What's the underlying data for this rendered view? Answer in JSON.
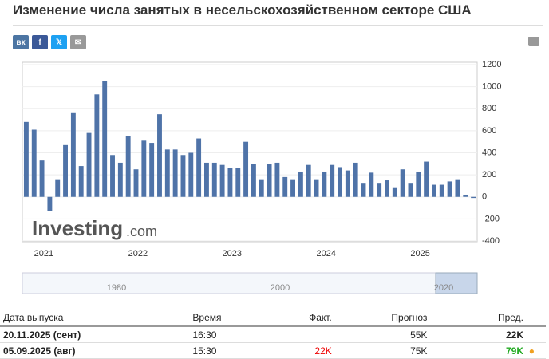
{
  "header": {
    "title": "Изменение числа занятых в несельскохозяйственном секторе США"
  },
  "share": [
    "вк",
    "f",
    "𝕏",
    "✉"
  ],
  "chart_data": {
    "type": "bar",
    "color": "#4f73a8",
    "watermark": "Investing",
    "watermark_suffix": ".com",
    "categories": [
      "2021",
      null,
      null,
      null,
      null,
      null,
      null,
      null,
      null,
      null,
      null,
      null,
      "2022",
      null,
      null,
      null,
      null,
      null,
      null,
      null,
      null,
      null,
      null,
      null,
      "2023",
      null,
      null,
      null,
      null,
      null,
      null,
      null,
      null,
      null,
      null,
      null,
      "2024",
      null,
      null,
      null,
      null,
      null,
      null,
      null,
      null,
      null,
      null,
      null,
      "2025",
      null,
      null,
      null,
      null,
      null,
      null,
      null,
      null,
      null
    ],
    "values": [
      680,
      610,
      330,
      -130,
      160,
      470,
      760,
      280,
      580,
      930,
      1050,
      380,
      310,
      550,
      250,
      510,
      490,
      750,
      430,
      430,
      380,
      400,
      530,
      310,
      310,
      290,
      260,
      260,
      500,
      300,
      160,
      300,
      310,
      180,
      160,
      230,
      290,
      160,
      230,
      290,
      270,
      240,
      310,
      120,
      220,
      120,
      150,
      80,
      250,
      120,
      230,
      320,
      110,
      110,
      140,
      160,
      20,
      -10
    ],
    "ylim": [
      -400,
      1200
    ],
    "yticks": [
      -400,
      -200,
      0,
      200,
      400,
      600,
      800,
      1000,
      1200
    ],
    "grid": true,
    "navigator_labels": [
      "1980",
      "2000",
      "2020"
    ]
  },
  "table": {
    "header": [
      "Дата выпуска",
      "Время",
      "Факт.",
      "Прогноз",
      "Пред."
    ],
    "rows": [
      [
        "20.11.2025 (сент)",
        "16:30",
        "",
        "55K",
        "22K"
      ],
      [
        "05.09.2025 (авг)",
        "15:30",
        "22K",
        "75K",
        "79K"
      ]
    ]
  }
}
